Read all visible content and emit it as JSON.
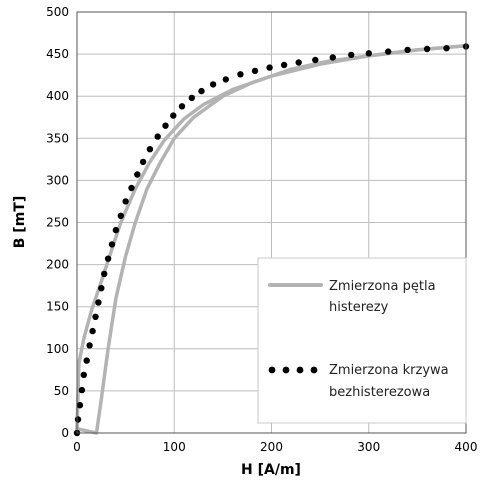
{
  "chart_data": {
    "type": "line",
    "xlabel": "H [A/m]",
    "ylabel": "B [mT]",
    "xlim": [
      0,
      400
    ],
    "ylim": [
      0,
      500
    ],
    "xticks": [
      0,
      100,
      200,
      300,
      400
    ],
    "yticks": [
      0,
      50,
      100,
      150,
      200,
      250,
      300,
      350,
      400,
      450,
      500
    ],
    "grid": true,
    "legend_position": "bottom-right",
    "series": [
      {
        "name": "Zmierzona pętla histerezy",
        "style": "solid",
        "color": "#b3b3b3",
        "branches": [
          {
            "x": [
              400,
              350,
              300,
              250,
              200,
              160,
              130,
              110,
              90,
              75,
              60,
              45,
              35,
              25,
              15,
              7,
              2,
              0
            ],
            "y": [
              460,
              455,
              448,
              438,
              424,
              408,
              390,
              373,
              348,
              322,
              290,
              250,
              215,
              180,
              146,
              112,
              83,
              5
            ]
          },
          {
            "x": [
              0,
              20,
              25,
              32,
              40,
              50,
              60,
              72,
              85,
              100,
              120,
              150,
              180,
              220,
              260,
              300,
              350,
              400
            ],
            "y": [
              5,
              0,
              40,
              100,
              160,
              210,
              250,
              290,
              320,
              350,
              375,
              400,
              416,
              432,
              442,
              448,
              455,
              460
            ]
          }
        ]
      },
      {
        "name": "Zmierzona krzywa bezhisterezowa",
        "style": "dotted",
        "color": "#000000",
        "x": [
          0,
          1,
          3,
          5,
          7,
          10,
          13,
          16,
          19,
          22,
          25,
          28,
          32,
          36,
          40,
          45,
          50,
          56,
          62,
          68,
          75,
          83,
          91,
          99,
          108,
          118,
          128,
          140,
          153,
          168,
          183,
          198,
          213,
          228,
          245,
          263,
          282,
          300,
          320,
          340,
          360,
          380,
          400
        ],
        "y": [
          0,
          16,
          33,
          51,
          69,
          86,
          104,
          121,
          138,
          155,
          172,
          189,
          207,
          224,
          241,
          258,
          275,
          291,
          307,
          322,
          337,
          352,
          365,
          377,
          388,
          398,
          406,
          414,
          420,
          426,
          430,
          434,
          437,
          440,
          443,
          446,
          449,
          451,
          453,
          455,
          456,
          457,
          459
        ]
      }
    ]
  },
  "legend": {
    "items": [
      {
        "line1": "Zmierzona pętla",
        "line2": "histerezy"
      },
      {
        "line1": "Zmierzona krzywa",
        "line2": "bezhisterezowa"
      }
    ]
  }
}
